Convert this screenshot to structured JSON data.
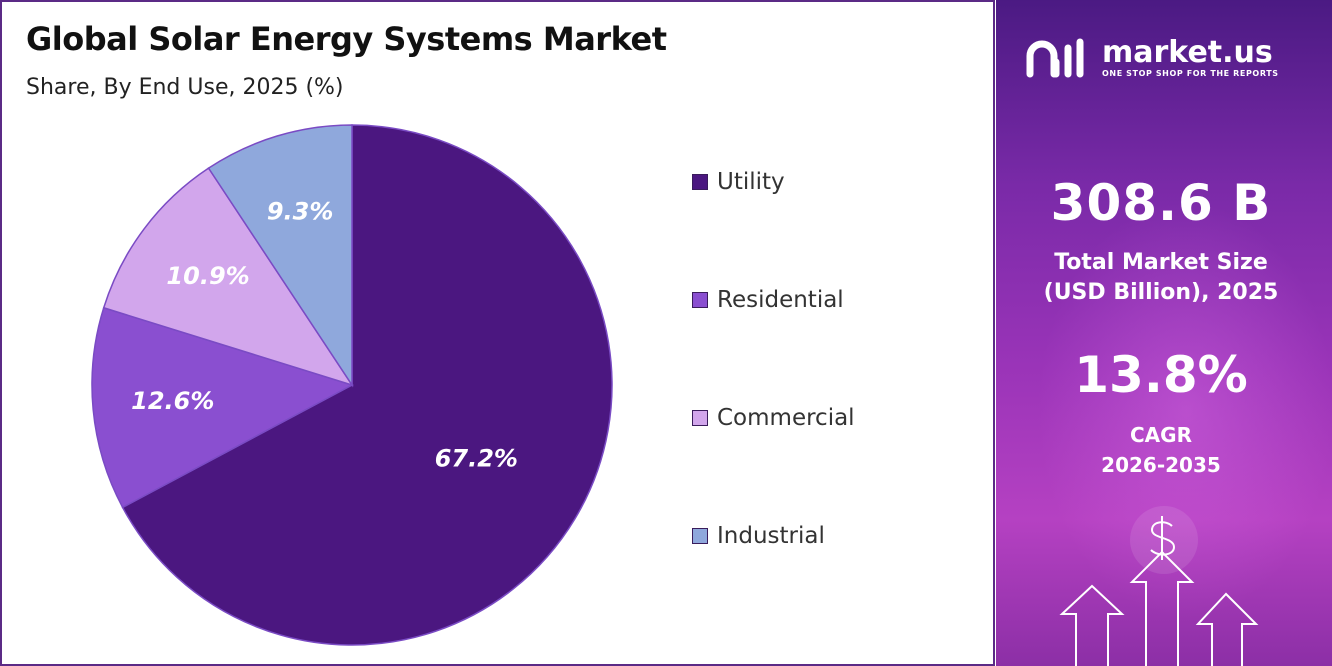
{
  "title": "Global Solar Energy Systems Market",
  "subtitle": "Share, By End Use, 2025 (%)",
  "chart_data": {
    "type": "pie",
    "title": "Global Solar Energy Systems Market",
    "subtitle": "Share, By End Use, 2025 (%)",
    "categories": [
      "Utility",
      "Residential",
      "Commercial",
      "Industrial"
    ],
    "values": [
      67.2,
      12.6,
      10.9,
      9.3
    ],
    "value_labels": [
      "67.2%",
      "12.6%",
      "10.9%",
      "9.3%"
    ],
    "colors": [
      "#4b1780",
      "#8a4fd0",
      "#d2a6ec",
      "#8fa8dc"
    ],
    "legend_position": "right",
    "start": "top, clockwise"
  },
  "sidebar": {
    "logo": {
      "name": "market.us",
      "tagline": "ONE STOP SHOP FOR THE REPORTS",
      "icon": "market-us-logo-icon"
    },
    "market_size_value": "308.6 B",
    "market_size_label_line1": "Total Market Size",
    "market_size_label_line2": "(USD Billion), 2025",
    "cagr_value": "13.8%",
    "cagr_label_line1": "CAGR",
    "cagr_label_line2": "2026-2035",
    "decoration_icons": [
      "dollar-sign-icon",
      "up-arrow-icon"
    ]
  }
}
